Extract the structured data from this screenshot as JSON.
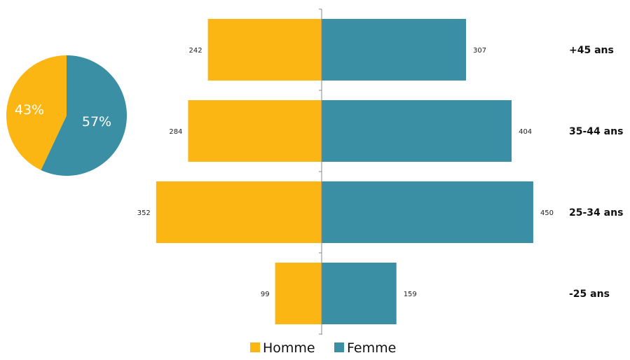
{
  "colors": {
    "homme": "#fbb614",
    "femme": "#3a8fa5",
    "axis": "#888888"
  },
  "chart_data": [
    {
      "type": "pie",
      "slices": [
        {
          "label": "Homme",
          "value": 43,
          "text": "43%"
        },
        {
          "label": "Femme",
          "value": 57,
          "text": "57%"
        }
      ]
    },
    {
      "type": "bar",
      "orientation": "horizontal-diverging",
      "categories": [
        "+45 ans",
        "35-44 ans",
        "25-34 ans",
        "-25 ans"
      ],
      "series": [
        {
          "name": "Homme",
          "values": [
            242,
            284,
            352,
            99
          ]
        },
        {
          "name": "Femme",
          "values": [
            307,
            404,
            450,
            159
          ]
        }
      ],
      "legend": {
        "position": "bottom",
        "entries": [
          "Homme",
          "Femme"
        ]
      }
    }
  ]
}
